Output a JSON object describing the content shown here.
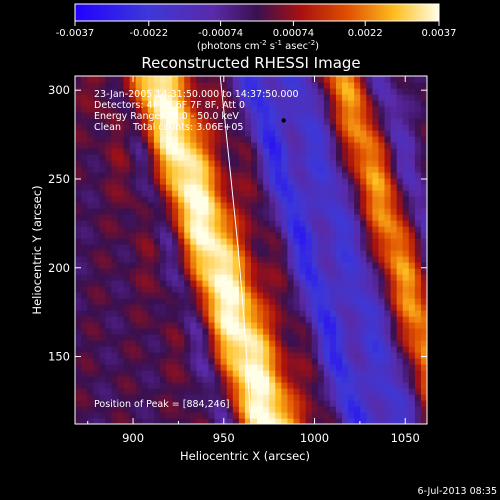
{
  "chart_data": {
    "type": "heatmap",
    "title": "Reconstructed RHESSI Image",
    "xlabel": "Heliocentric X (arcsec)",
    "ylabel": "Heliocentric Y (arcsec)",
    "xlim": [
      868,
      1062
    ],
    "ylim": [
      112,
      308
    ],
    "x_ticks": [
      900,
      950,
      1000,
      1050
    ],
    "y_ticks": [
      150,
      200,
      250,
      300
    ],
    "colorbar": {
      "ticks": [
        "-0.0037",
        "-0.0022",
        "-0.00074",
        "0.00074",
        "0.0022",
        "0.0037"
      ],
      "range": [
        -0.0037,
        0.0037
      ],
      "label_main": "(photons cm",
      "label_sup1": "-2",
      "label_mid": " s",
      "label_sup2": "-1",
      "label_end": " asec",
      "label_sup3": "-2",
      "label_close": ")"
    },
    "annotations": [
      "23-Jan-2005 14:31:50.000 to 14:37:50.000",
      "Detectors: 4F 5F 6F 7F 8F, Att 0",
      "Energy Range: 25.0 - 50.0 keV",
      "Clean    Total counts: 3.06E+05"
    ],
    "peak_label": "Position of Peak = [884,246]",
    "peak_position": [
      884,
      246
    ],
    "limb_curve": [
      [
        948,
        308
      ],
      [
        953,
        260
      ],
      [
        958,
        210
      ],
      [
        962,
        160
      ],
      [
        965,
        112
      ]
    ],
    "bands": [
      {
        "x0": 945,
        "slope": -0.33,
        "width": 26,
        "amp": 1.0
      },
      {
        "x0": 922,
        "slope": -0.3,
        "width": 9,
        "amp": -0.55
      },
      {
        "x0": 965,
        "slope": -0.33,
        "width": 12,
        "amp": -0.35
      },
      {
        "x0": 994,
        "slope": -0.3,
        "width": 9,
        "amp": -0.75
      },
      {
        "x0": 1018,
        "slope": -0.3,
        "width": 12,
        "amp": -0.55
      },
      {
        "x0": 1045,
        "slope": -0.3,
        "width": 12,
        "amp": 0.65
      },
      {
        "x0": 1065,
        "slope": -0.3,
        "width": 8,
        "amp": -0.35
      }
    ],
    "colormap": [
      [
        0.0,
        "#2200ff"
      ],
      [
        0.2,
        "#3d38d8"
      ],
      [
        0.38,
        "#5a2aa8"
      ],
      [
        0.5,
        "#3a1050"
      ],
      [
        0.62,
        "#a81010"
      ],
      [
        0.75,
        "#e05000"
      ],
      [
        0.88,
        "#ffc020"
      ],
      [
        1.0,
        "#ffffe8"
      ]
    ]
  },
  "footer": {
    "date": "6-Jul-2013 08:35"
  }
}
